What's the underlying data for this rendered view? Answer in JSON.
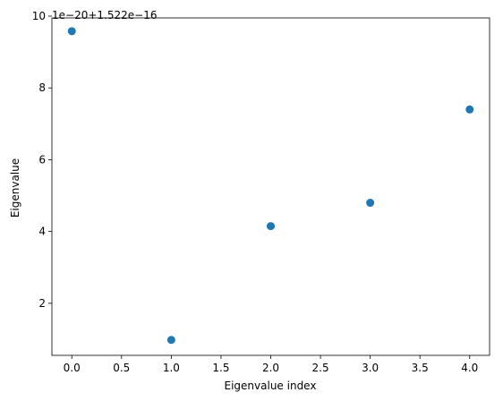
{
  "chart_data": {
    "type": "scatter",
    "title": "",
    "xlabel": "Eigenvalue index",
    "ylabel": "Eigenvalue",
    "offset_text": "1e−20+1.522e−16",
    "xlim": [
      -0.2,
      4.2
    ],
    "ylim": [
      0.55,
      9.95
    ],
    "xticks": [
      0.0,
      0.5,
      1.0,
      1.5,
      2.0,
      2.5,
      3.0,
      3.5,
      4.0
    ],
    "xtick_labels": [
      "0.0",
      "0.5",
      "1.0",
      "1.5",
      "2.0",
      "2.5",
      "3.0",
      "3.5",
      "4.0"
    ],
    "yticks": [
      2,
      4,
      6,
      8,
      10
    ],
    "ytick_labels": [
      "2",
      "4",
      "6",
      "8",
      "10"
    ],
    "grid": false,
    "series": [
      {
        "color": "#1f77b4",
        "x": [
          0,
          1,
          2,
          3,
          4
        ],
        "y": [
          9.58,
          0.98,
          4.15,
          4.8,
          7.4
        ]
      }
    ]
  }
}
